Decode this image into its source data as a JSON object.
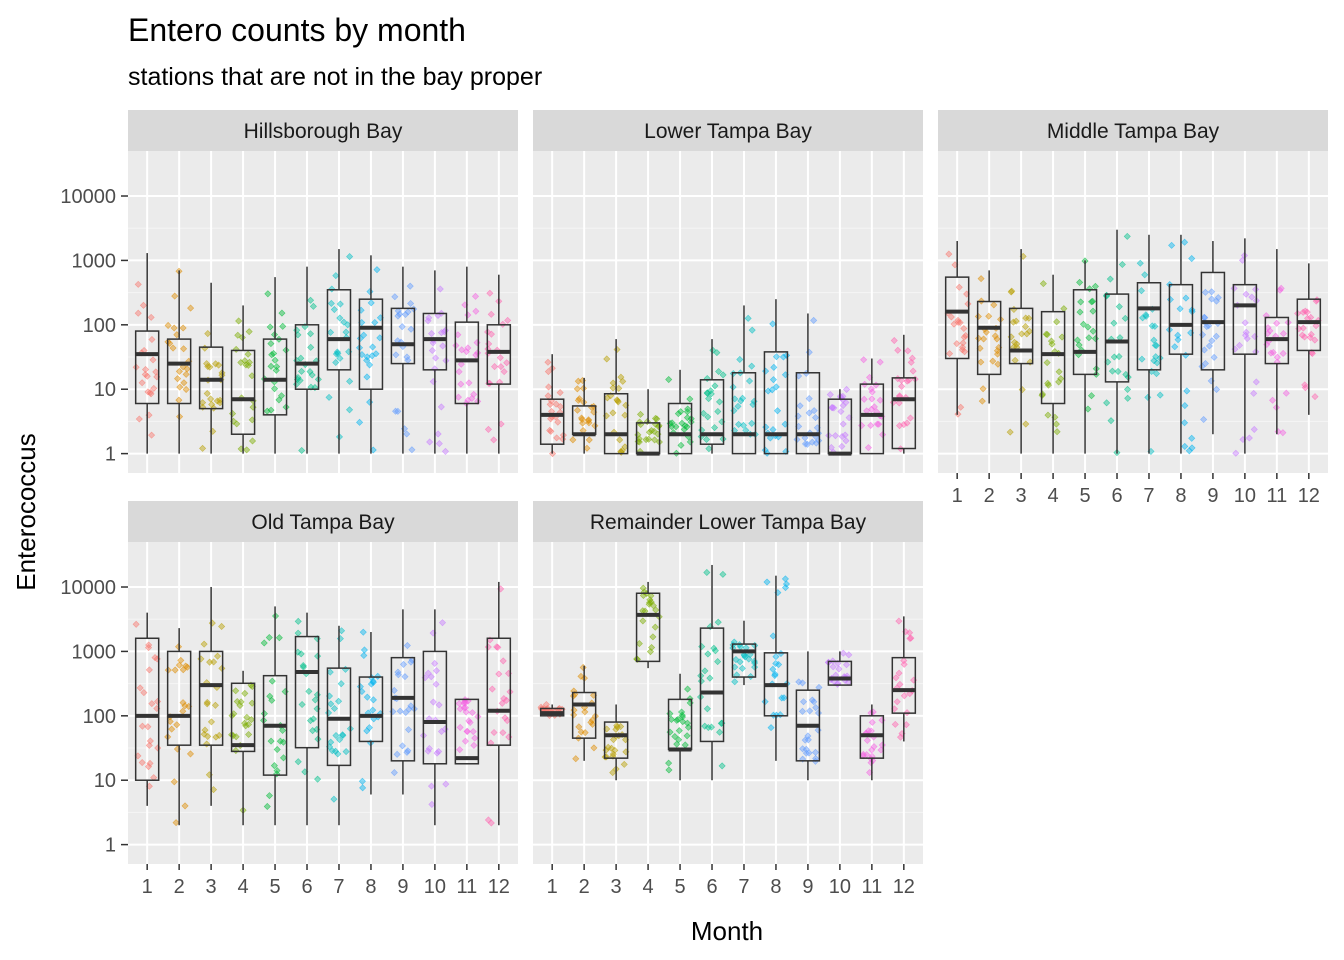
{
  "chart_data": {
    "type": "box",
    "title": "Entero counts by month",
    "subtitle": "stations that are not in the bay proper",
    "xlabel": "Month",
    "ylabel": "Enterococcus",
    "y_scale": "log10",
    "y_ticks": [
      1,
      10,
      100,
      1000,
      10000
    ],
    "y_tick_labels": [
      "1",
      "10",
      "100",
      "1000",
      "10000"
    ],
    "categories": [
      "1",
      "2",
      "3",
      "4",
      "5",
      "6",
      "7",
      "8",
      "9",
      "10",
      "11",
      "12"
    ],
    "grid": true,
    "legend": "none",
    "point_colors": [
      "#F8766D",
      "#DE8C00",
      "#B79F00",
      "#7CAE00",
      "#00BA38",
      "#00C08B",
      "#00BFC4",
      "#00B4F0",
      "#619CFF",
      "#C77CFF",
      "#F564E3",
      "#FF64B0"
    ],
    "panels": [
      {
        "name": "Hillsborough Bay",
        "boxes": [
          {
            "month": 1,
            "min": 1,
            "q1": 6,
            "median": 35,
            "q3": 80,
            "max": 1300
          },
          {
            "month": 2,
            "min": 1,
            "q1": 6,
            "median": 25,
            "q3": 60,
            "max": 700
          },
          {
            "month": 3,
            "min": 1,
            "q1": 5,
            "median": 14,
            "q3": 45,
            "max": 450
          },
          {
            "month": 4,
            "min": 1,
            "q1": 2,
            "median": 7,
            "q3": 40,
            "max": 200
          },
          {
            "month": 5,
            "min": 1,
            "q1": 4,
            "median": 14,
            "q3": 60,
            "max": 550
          },
          {
            "month": 6,
            "min": 1,
            "q1": 10,
            "median": 25,
            "q3": 100,
            "max": 800
          },
          {
            "month": 7,
            "min": 1,
            "q1": 20,
            "median": 60,
            "q3": 350,
            "max": 1500
          },
          {
            "month": 8,
            "min": 1,
            "q1": 10,
            "median": 90,
            "q3": 250,
            "max": 1200
          },
          {
            "month": 9,
            "min": 1,
            "q1": 25,
            "median": 50,
            "q3": 180,
            "max": 800
          },
          {
            "month": 10,
            "min": 1,
            "q1": 20,
            "median": 60,
            "q3": 150,
            "max": 700
          },
          {
            "month": 11,
            "min": 1,
            "q1": 6,
            "median": 28,
            "q3": 110,
            "max": 800
          },
          {
            "month": 12,
            "min": 1,
            "q1": 12,
            "median": 38,
            "q3": 100,
            "max": 600
          }
        ]
      },
      {
        "name": "Lower Tampa Bay",
        "boxes": [
          {
            "month": 1,
            "min": 1,
            "q1": 1.4,
            "median": 4,
            "q3": 7,
            "max": 35
          },
          {
            "month": 2,
            "min": 1,
            "q1": 2,
            "median": 2,
            "q3": 5.5,
            "max": 15
          },
          {
            "month": 3,
            "min": 1,
            "q1": 1,
            "median": 2,
            "q3": 8.5,
            "max": 60
          },
          {
            "month": 4,
            "min": 1,
            "q1": 1,
            "median": 1,
            "q3": 3,
            "max": 10
          },
          {
            "month": 5,
            "min": 1,
            "q1": 1,
            "median": 2,
            "q3": 6,
            "max": 20
          },
          {
            "month": 6,
            "min": 1,
            "q1": 1.4,
            "median": 2,
            "q3": 14,
            "max": 60
          },
          {
            "month": 7,
            "min": 1,
            "q1": 1,
            "median": 2,
            "q3": 18,
            "max": 200
          },
          {
            "month": 8,
            "min": 1,
            "q1": 1,
            "median": 2,
            "q3": 38,
            "max": 250
          },
          {
            "month": 9,
            "min": 1,
            "q1": 1,
            "median": 2,
            "q3": 18,
            "max": 150
          },
          {
            "month": 10,
            "min": 1,
            "q1": 1,
            "median": 1,
            "q3": 7,
            "max": 10
          },
          {
            "month": 11,
            "min": 1,
            "q1": 1,
            "median": 4,
            "q3": 12,
            "max": 30
          },
          {
            "month": 12,
            "min": 1,
            "q1": 1.2,
            "median": 7,
            "q3": 15,
            "max": 70
          }
        ]
      },
      {
        "name": "Middle Tampa Bay",
        "boxes": [
          {
            "month": 1,
            "min": 4,
            "q1": 30,
            "median": 160,
            "q3": 550,
            "max": 2000
          },
          {
            "month": 2,
            "min": 6,
            "q1": 17,
            "median": 90,
            "q3": 230,
            "max": 700
          },
          {
            "month": 3,
            "min": 1,
            "q1": 25,
            "median": 40,
            "q3": 180,
            "max": 1500
          },
          {
            "month": 4,
            "min": 1,
            "q1": 6,
            "median": 35,
            "q3": 160,
            "max": 600
          },
          {
            "month": 5,
            "min": 1,
            "q1": 17,
            "median": 38,
            "q3": 350,
            "max": 1000
          },
          {
            "month": 6,
            "min": 1,
            "q1": 13,
            "median": 55,
            "q3": 300,
            "max": 3000
          },
          {
            "month": 7,
            "min": 1,
            "q1": 20,
            "median": 180,
            "q3": 450,
            "max": 2500
          },
          {
            "month": 8,
            "min": 1,
            "q1": 35,
            "median": 100,
            "q3": 420,
            "max": 2500
          },
          {
            "month": 9,
            "min": 2,
            "q1": 20,
            "median": 110,
            "q3": 650,
            "max": 2000
          },
          {
            "month": 10,
            "min": 1,
            "q1": 35,
            "median": 200,
            "q3": 420,
            "max": 2200
          },
          {
            "month": 11,
            "min": 2,
            "q1": 25,
            "median": 60,
            "q3": 130,
            "max": 1500
          },
          {
            "month": 12,
            "min": 4,
            "q1": 40,
            "median": 110,
            "q3": 250,
            "max": 900
          }
        ]
      },
      {
        "name": "Old Tampa Bay",
        "boxes": [
          {
            "month": 1,
            "min": 4,
            "q1": 10,
            "median": 100,
            "q3": 1600,
            "max": 4000
          },
          {
            "month": 2,
            "min": 2,
            "q1": 35,
            "median": 100,
            "q3": 1000,
            "max": 2300
          },
          {
            "month": 3,
            "min": 4,
            "q1": 35,
            "median": 300,
            "q3": 1000,
            "max": 10000
          },
          {
            "month": 4,
            "min": 2,
            "q1": 28,
            "median": 35,
            "q3": 320,
            "max": 500
          },
          {
            "month": 5,
            "min": 2,
            "q1": 12,
            "median": 70,
            "q3": 420,
            "max": 5000
          },
          {
            "month": 6,
            "min": 2,
            "q1": 32,
            "median": 480,
            "q3": 1700,
            "max": 4000
          },
          {
            "month": 7,
            "min": 2,
            "q1": 17,
            "median": 90,
            "q3": 550,
            "max": 2500
          },
          {
            "month": 8,
            "min": 6,
            "q1": 40,
            "median": 100,
            "q3": 400,
            "max": 2000
          },
          {
            "month": 9,
            "min": 6,
            "q1": 20,
            "median": 190,
            "q3": 800,
            "max": 4500
          },
          {
            "month": 10,
            "min": 2,
            "q1": 18,
            "median": 80,
            "q3": 1000,
            "max": 4500
          },
          {
            "month": 11,
            "min": 18,
            "q1": 18,
            "median": 22,
            "q3": 180,
            "max": 180
          },
          {
            "month": 12,
            "min": 2,
            "q1": 35,
            "median": 120,
            "q3": 1600,
            "max": 12000
          }
        ]
      },
      {
        "name": "Remainder Lower Tampa Bay",
        "boxes": [
          {
            "month": 1,
            "min": 100,
            "q1": 100,
            "median": 110,
            "q3": 130,
            "max": 150
          },
          {
            "month": 2,
            "min": 20,
            "q1": 45,
            "median": 150,
            "q3": 230,
            "max": 600
          },
          {
            "month": 3,
            "min": 10,
            "q1": 22,
            "median": 50,
            "q3": 80,
            "max": 150
          },
          {
            "month": 4,
            "min": 550,
            "q1": 700,
            "median": 3700,
            "q3": 8000,
            "max": 12000
          },
          {
            "month": 5,
            "min": 10,
            "q1": 30,
            "median": 30,
            "q3": 180,
            "max": 450
          },
          {
            "month": 6,
            "min": 10,
            "q1": 40,
            "median": 230,
            "q3": 2300,
            "max": 22000
          },
          {
            "month": 7,
            "min": 300,
            "q1": 400,
            "median": 1000,
            "q3": 1300,
            "max": 3000
          },
          {
            "month": 8,
            "min": 20,
            "q1": 100,
            "median": 300,
            "q3": 950,
            "max": 15000
          },
          {
            "month": 9,
            "min": 10,
            "q1": 20,
            "median": 70,
            "q3": 250,
            "max": 1000
          },
          {
            "month": 10,
            "min": 300,
            "q1": 300,
            "median": 380,
            "q3": 700,
            "max": 1000
          },
          {
            "month": 11,
            "min": 10,
            "q1": 22,
            "median": 50,
            "q3": 100,
            "max": 150
          },
          {
            "month": 12,
            "min": 40,
            "q1": 110,
            "median": 250,
            "q3": 800,
            "max": 3500
          }
        ]
      }
    ]
  }
}
